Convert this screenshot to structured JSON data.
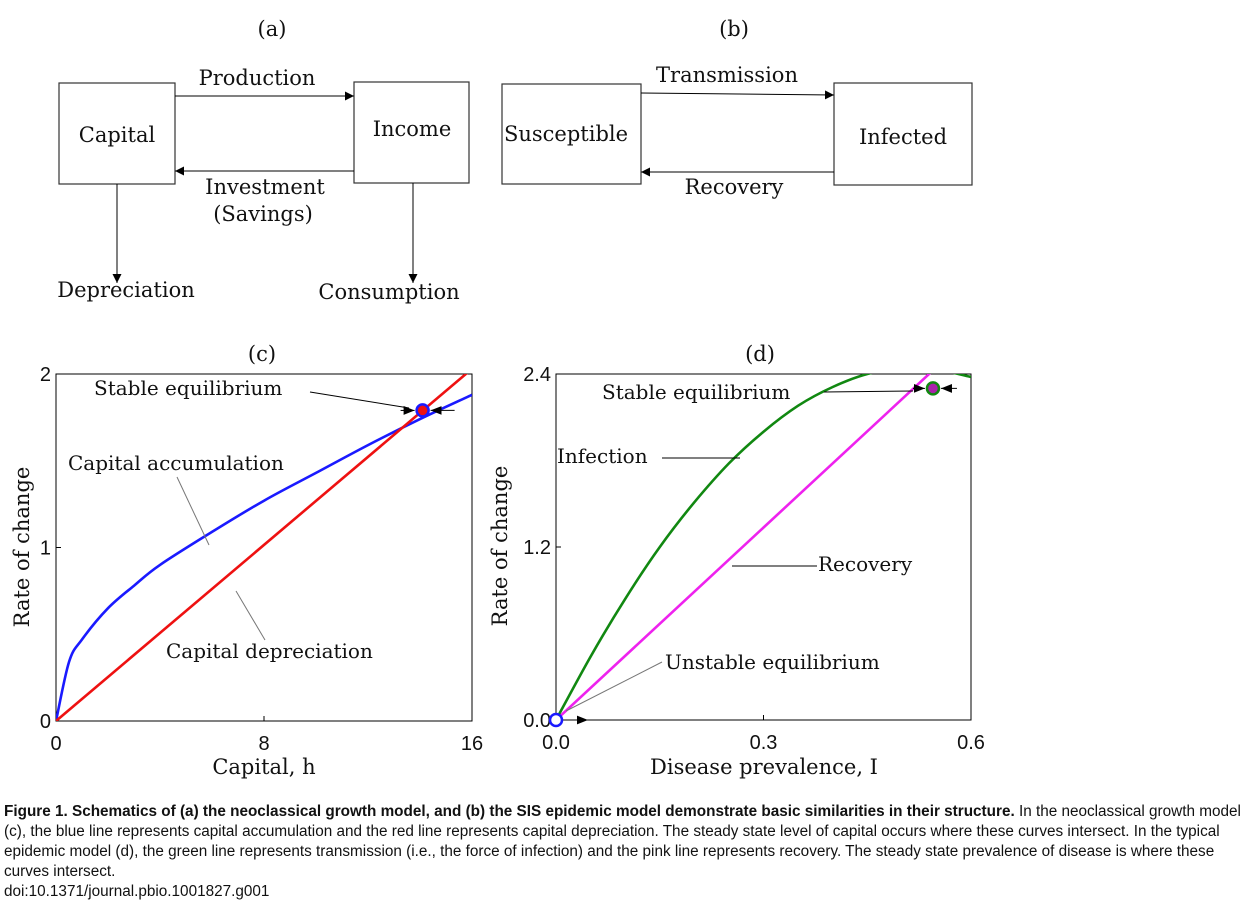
{
  "panels": {
    "a": {
      "label": "(a)",
      "boxes": {
        "left": "Capital",
        "right": "Income"
      },
      "arrows": {
        "top": "Production",
        "bottom_line1": "Investment",
        "bottom_line2": "(Savings)",
        "down_left": "Depreciation",
        "down_right": "Consumption"
      }
    },
    "b": {
      "label": "(b)",
      "boxes": {
        "left": "Susceptible",
        "right": "Infected"
      },
      "arrows": {
        "top": "Transmission",
        "bottom": "Recovery"
      }
    },
    "c": {
      "label": "(c)",
      "annotations": {
        "stable": "Stable equilibrium",
        "accumulation": "Capital accumulation",
        "depreciation": "Capital depreciation"
      }
    },
    "d": {
      "label": "(d)",
      "annotations": {
        "stable": "Stable equilibrium",
        "infection": "Infection",
        "recovery": "Recovery",
        "unstable": "Unstable equilibrium"
      }
    }
  },
  "chart_data": [
    {
      "type": "line",
      "title": "(c)",
      "xlabel": "Capital, h",
      "ylabel": "Rate of change",
      "xlim": [
        0,
        16
      ],
      "ylim": [
        0,
        2
      ],
      "xticks": [
        "0",
        "8",
        "16"
      ],
      "yticks": [
        "0",
        "1",
        "2"
      ],
      "grid": false,
      "series": [
        {
          "name": "Capital accumulation",
          "color": "#1a1aff",
          "x": [
            0,
            0.5,
            1,
            2,
            3,
            4,
            6,
            8,
            10,
            12,
            14,
            16
          ],
          "y": [
            0,
            0.34,
            0.47,
            0.65,
            0.78,
            0.9,
            1.09,
            1.27,
            1.43,
            1.59,
            1.74,
            1.88
          ]
        },
        {
          "name": "Capital depreciation",
          "color": "#ee1111",
          "x": [
            0,
            16
          ],
          "y": [
            0,
            2.03
          ]
        }
      ],
      "points": [
        {
          "name": "Stable equilibrium",
          "x": 14.1,
          "y": 1.79,
          "stroke": "#1a1aff",
          "fill": "#ee1111"
        }
      ]
    },
    {
      "type": "line",
      "title": "(d)",
      "xlabel": "Disease prevalence, I",
      "ylabel": "Rate of change",
      "xlim": [
        0,
        0.6
      ],
      "ylim": [
        0,
        2.4
      ],
      "xticks": [
        "0.0",
        "0.3",
        "0.6"
      ],
      "yticks": [
        "0.0",
        "1.2",
        "2.4"
      ],
      "grid": false,
      "series": [
        {
          "name": "Infection",
          "color": "#118811",
          "x": [
            0,
            0.05,
            0.1,
            0.15,
            0.2,
            0.25,
            0.3,
            0.35,
            0.4,
            0.45,
            0.5,
            0.55,
            0.6
          ],
          "y": [
            0,
            0.44,
            0.84,
            1.2,
            1.51,
            1.78,
            2.0,
            2.18,
            2.31,
            2.4,
            2.44,
            2.43,
            2.38
          ]
        },
        {
          "name": "Recovery",
          "color": "#ee22ee",
          "x": [
            0,
            0.6
          ],
          "y": [
            0,
            2.67
          ]
        }
      ],
      "points": [
        {
          "name": "Stable equilibrium",
          "x": 0.545,
          "y": 2.3,
          "stroke": "#118811",
          "fill": "#aa22aa"
        },
        {
          "name": "Unstable equilibrium",
          "x": 0.0,
          "y": 0.0,
          "stroke": "#1a1aff",
          "fill": "#ffffff"
        }
      ]
    }
  ],
  "caption": {
    "bold": "Figure 1. Schematics of (a) the neoclassical growth model, and (b) the SIS epidemic model demonstrate basic similarities in their structure.",
    "body": " In the neoclassical growth model (c), the blue line represents capital accumulation and the red line represents capital depreciation. The steady state level of capital occurs where these curves intersect. In the typical epidemic model (d), the green line represents transmission (i.e., the force of infection) and the pink line represents recovery. The steady state prevalence of disease is where these curves intersect.",
    "doi": "doi:10.1371/journal.pbio.1001827.g001"
  }
}
